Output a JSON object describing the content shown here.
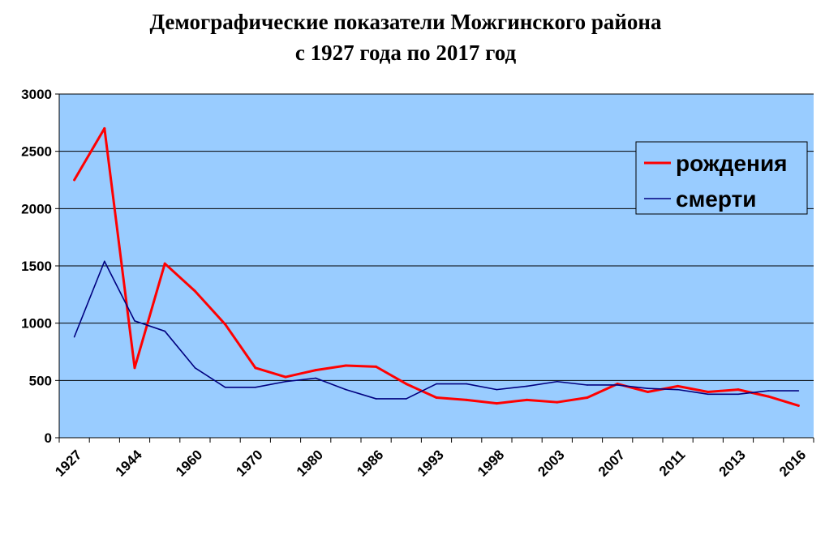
{
  "chart_data": {
    "type": "line",
    "title": "Демографические показатели Можгинского района",
    "subtitle": "с 1927 года по 2017 год",
    "xlabel": "",
    "ylabel": "",
    "ylim": [
      0,
      3000
    ],
    "yticks": [
      "0",
      "500",
      "1000",
      "1500",
      "2000",
      "2500",
      "3000"
    ],
    "categories": [
      "1927",
      "",
      "1944",
      "",
      "1960",
      "",
      "1970",
      "",
      "1980",
      "",
      "1986",
      "",
      "1993",
      "",
      "1998",
      "",
      "2003",
      "",
      "2007",
      "",
      "2011",
      "",
      "2013",
      "",
      "2016"
    ],
    "series": [
      {
        "name": "рождения",
        "color": "#ff0000",
        "values": [
          2250,
          2700,
          610,
          1520,
          1280,
          990,
          610,
          530,
          590,
          630,
          620,
          470,
          350,
          330,
          300,
          330,
          310,
          350,
          470,
          400,
          450,
          400,
          420,
          360,
          280
        ]
      },
      {
        "name": "смерти",
        "color": "#000080",
        "values": [
          880,
          1540,
          1020,
          930,
          610,
          440,
          440,
          490,
          520,
          420,
          340,
          340,
          470,
          470,
          420,
          450,
          490,
          460,
          460,
          430,
          420,
          380,
          380,
          410,
          410
        ]
      }
    ],
    "grid": true,
    "legend_position": "top-right",
    "plot_background": "#99ccff"
  }
}
